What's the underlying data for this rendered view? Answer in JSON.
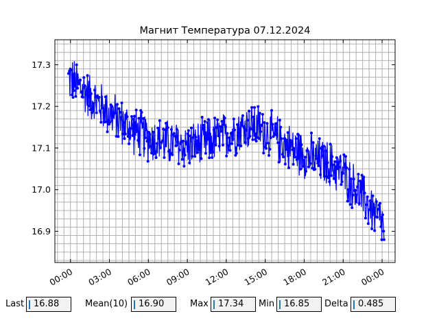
{
  "chart_data": {
    "type": "line",
    "title": "Магнит Температура 07.12.2024",
    "xlabel": "",
    "ylabel": "",
    "x_ticks": [
      "00:00",
      "03:00",
      "06:00",
      "09:00",
      "12:00",
      "15:00",
      "18:00",
      "21:00",
      "00:00"
    ],
    "y_ticks": [
      "16.9",
      "17.0",
      "17.1",
      "17.2",
      "17.3"
    ],
    "xlim_hours": [
      -1.2,
      25.0
    ],
    "ylim": [
      16.825,
      17.36
    ],
    "grid": true,
    "series_color": "#0000ff",
    "series": [
      {
        "trend_hours": [
          0.0,
          1.0,
          2.0,
          3.0,
          4.0,
          5.0,
          6.0,
          7.0,
          8.0,
          9.0,
          10.0,
          11.0,
          12.0,
          13.0,
          14.0,
          15.0,
          16.0,
          17.0,
          18.0,
          19.0,
          20.0,
          21.0,
          22.0,
          23.0,
          24.0
        ],
        "trend_values": [
          17.265,
          17.24,
          17.21,
          17.185,
          17.16,
          17.14,
          17.125,
          17.115,
          17.11,
          17.105,
          17.11,
          17.12,
          17.13,
          17.145,
          17.155,
          17.14,
          17.12,
          17.1,
          17.085,
          17.07,
          17.06,
          17.04,
          17.0,
          16.96,
          16.92
        ],
        "noise_amplitude": 0.065,
        "last_value": 16.88
      }
    ]
  },
  "stats": {
    "last": {
      "label": "Last",
      "value": "16.88"
    },
    "mean": {
      "label": "Mean(10)",
      "value": "16.90"
    },
    "max": {
      "label": "Max",
      "value": "17.34"
    },
    "min": {
      "label": "Min",
      "value": "16.85"
    },
    "delta": {
      "label": "Delta",
      "value": "0.485"
    }
  }
}
